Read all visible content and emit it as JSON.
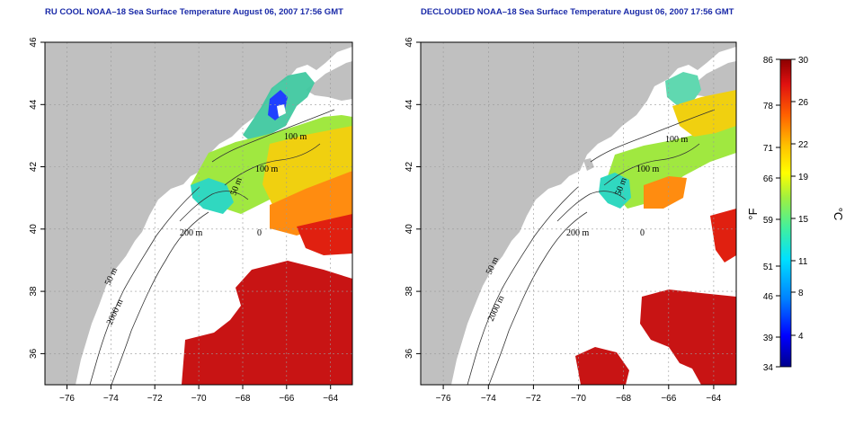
{
  "panels": [
    {
      "title": "RU COOL NOAA–18 Sea Surface Temperature August 06, 2007 17:56 GMT",
      "contour_labels": [
        "100 m",
        "100 m",
        "50 m",
        "200 m",
        "50 m",
        "2000 m",
        "0"
      ]
    },
    {
      "title": "DECLOUDED NOAA–18 Sea Surface Temperature August 06, 2007 17:56 GMT",
      "contour_labels": [
        "100 m",
        "100 m",
        "50 m",
        "200 m",
        "50 m",
        "2000 m",
        "0"
      ]
    }
  ],
  "axes": {
    "x_ticks": [
      "−76",
      "−74",
      "−72",
      "−70",
      "−68",
      "−66",
      "−64"
    ],
    "y_ticks": [
      "46",
      "44",
      "42",
      "40",
      "38",
      "36"
    ],
    "lon_range": [
      -77,
      -63
    ],
    "lat_range": [
      35,
      46
    ]
  },
  "colorbar": {
    "fahrenheit_ticks": [
      "86",
      "78",
      "71",
      "66",
      "59",
      "51",
      "46",
      "39",
      "34"
    ],
    "celsius_ticks": [
      "30",
      "26",
      "22",
      "19",
      "15",
      "11",
      "8",
      "4"
    ],
    "fahrenheit_unit": "°F",
    "celsius_unit": "°C",
    "range_c": [
      1,
      30
    ]
  },
  "colors": {
    "land": "#c0c0c0",
    "ocean": "#ffffff",
    "title": "#1a2aa8",
    "warm": "#c81414",
    "cold": "#00008c"
  }
}
